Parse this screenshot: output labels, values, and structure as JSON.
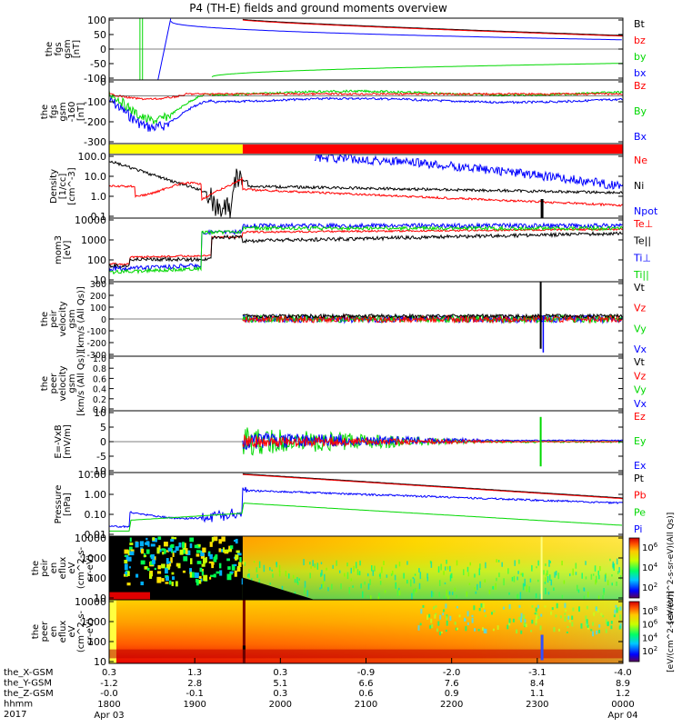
{
  "title": "P4 (TH-E) fields and ground moments overview",
  "colors": {
    "black": "#000000",
    "red": "#ff0000",
    "green": "#00d800",
    "blue": "#0000ff",
    "yellow": "#ffff00"
  },
  "chart_data": [
    {
      "type": "line",
      "ylabel_lines": [
        "the",
        "fgs",
        "gsm",
        "[nT]"
      ],
      "yticks": [
        "100",
        "50",
        "0",
        "-50",
        "-100"
      ],
      "series": [
        {
          "name": "Bt",
          "color": "#000000"
        },
        {
          "name": "bz",
          "color": "#ff0000"
        },
        {
          "name": "by",
          "color": "#00d800"
        },
        {
          "name": "bx",
          "color": "#0000ff"
        }
      ]
    },
    {
      "type": "line",
      "ylabel_lines": [
        "the",
        "fgs",
        "gsm",
        "-160",
        "[nT]"
      ],
      "yticks": [
        "0",
        "-100",
        "-200",
        "-300"
      ],
      "series": [
        {
          "name": "Bz",
          "color": "#ff0000"
        },
        {
          "name": "By",
          "color": "#00d800"
        },
        {
          "name": "Bx",
          "color": "#0000ff"
        }
      ]
    },
    {
      "type": "bar",
      "ylabel_lines": [],
      "yticks": [],
      "segments": [
        {
          "from": "1800",
          "to": "1935",
          "color": "#ffff00"
        },
        {
          "from": "1935",
          "to": "0000",
          "color": "#ff0000"
        }
      ]
    },
    {
      "type": "line",
      "ylabel_lines": [
        "Density",
        "[1/cc]",
        "[cm^-3]"
      ],
      "log": true,
      "yticks": [
        "100.0",
        "10.0",
        "1.0",
        "0.1"
      ],
      "series": [
        {
          "name": "Ne",
          "color": "#ff0000"
        },
        {
          "name": "Ni",
          "color": "#000000"
        },
        {
          "name": "Npot",
          "color": "#0000ff"
        }
      ]
    },
    {
      "type": "line",
      "ylabel_lines": [
        "mom3",
        "[eV]"
      ],
      "log": true,
      "yticks": [
        "10000",
        "1000",
        "100",
        "10"
      ],
      "series": [
        {
          "name": "Te⊥",
          "color": "#ff0000"
        },
        {
          "name": "Te||",
          "color": "#000000"
        },
        {
          "name": "Ti⊥",
          "color": "#0000ff"
        },
        {
          "name": "Ti||",
          "color": "#00d800"
        }
      ]
    },
    {
      "type": "line",
      "ylabel_lines": [
        "the",
        "peir",
        "velocity",
        "gsm",
        "[km/s (All Qs)]"
      ],
      "yticks": [
        "300",
        "200",
        "100",
        "0",
        "-100",
        "-200",
        "-300"
      ],
      "series": [
        {
          "name": "Vt",
          "color": "#000000"
        },
        {
          "name": "Vz",
          "color": "#ff0000"
        },
        {
          "name": "Vy",
          "color": "#00d800"
        },
        {
          "name": "Vx",
          "color": "#0000ff"
        }
      ]
    },
    {
      "type": "line",
      "ylabel_lines": [
        "the",
        "peer",
        "velocity",
        "gsm",
        "[km/s (All Qs)]"
      ],
      "yticks": [
        "1.0",
        "0.8",
        "0.6",
        "0.4",
        "0.2",
        "0.0"
      ],
      "series": [
        {
          "name": "Vt",
          "color": "#000000"
        },
        {
          "name": "Vz",
          "color": "#ff0000"
        },
        {
          "name": "Vy",
          "color": "#00d800"
        },
        {
          "name": "Vx",
          "color": "#0000ff"
        }
      ]
    },
    {
      "type": "line",
      "ylabel_lines": [
        "E=-VxB",
        "[mV/m]"
      ],
      "yticks": [
        "10",
        "5",
        "0",
        "-5",
        "-10"
      ],
      "series": [
        {
          "name": "Ez",
          "color": "#ff0000"
        },
        {
          "name": "Ey",
          "color": "#00d800"
        },
        {
          "name": "Ex",
          "color": "#0000ff"
        }
      ]
    },
    {
      "type": "line",
      "ylabel_lines": [
        "Pressure",
        "[nPa]"
      ],
      "log": true,
      "yticks": [
        "10.00",
        "1.00",
        "0.10",
        "0.01"
      ],
      "series": [
        {
          "name": "Pt",
          "color": "#000000"
        },
        {
          "name": "Pb",
          "color": "#ff0000"
        },
        {
          "name": "Pe",
          "color": "#00d800"
        },
        {
          "name": "Pi",
          "color": "#0000ff"
        }
      ]
    },
    {
      "type": "heatmap",
      "ylabel_lines": [
        "the",
        "peir",
        "en",
        "eflux",
        "eV",
        "(cm^2-s-",
        "sr-eV)"
      ],
      "yticks": [
        "10000",
        "1000",
        "100",
        "10"
      ],
      "colorbar_label": "[eV/(cm^2-s-sr-eV)(All Qs)]",
      "colorbar_ticks": [
        "10^6",
        "10^4",
        "10^2"
      ]
    },
    {
      "type": "heatmap",
      "ylabel_lines": [
        "the",
        "peer",
        "en",
        "eflux",
        "eV",
        "(cm^2-s-",
        "sr-eV)"
      ],
      "yticks": [
        "10000",
        "1000",
        "100",
        "10"
      ],
      "colorbar_label": "[eV/(cm^2-s-sr-eV)]",
      "colorbar_ticks": [
        "10^8",
        "10^6",
        "10^4",
        "10^2"
      ]
    }
  ],
  "xaxis": {
    "row_labels": [
      "the_X-GSM",
      "the_Y-GSM",
      "the_Z-GSM",
      "hhmm",
      "2017"
    ],
    "columns": [
      {
        "x": "0.3",
        "y": "-1.2",
        "z": "-0.0",
        "hhmm": "1800",
        "date": "Apr 03"
      },
      {
        "x": "1.3",
        "y": "2.8",
        "z": "-0.1",
        "hhmm": "1900",
        "date": ""
      },
      {
        "x": "0.3",
        "y": "5.1",
        "z": "0.3",
        "hhmm": "2000",
        "date": ""
      },
      {
        "x": "-0.9",
        "y": "6.6",
        "z": "0.6",
        "hhmm": "2100",
        "date": ""
      },
      {
        "x": "-2.0",
        "y": "7.6",
        "z": "0.9",
        "hhmm": "2200",
        "date": ""
      },
      {
        "x": "-3.1",
        "y": "8.4",
        "z": "1.1",
        "hhmm": "2300",
        "date": ""
      },
      {
        "x": "-4.0",
        "y": "8.9",
        "z": "1.2",
        "hhmm": "0000",
        "date": "Apr 04"
      }
    ]
  }
}
